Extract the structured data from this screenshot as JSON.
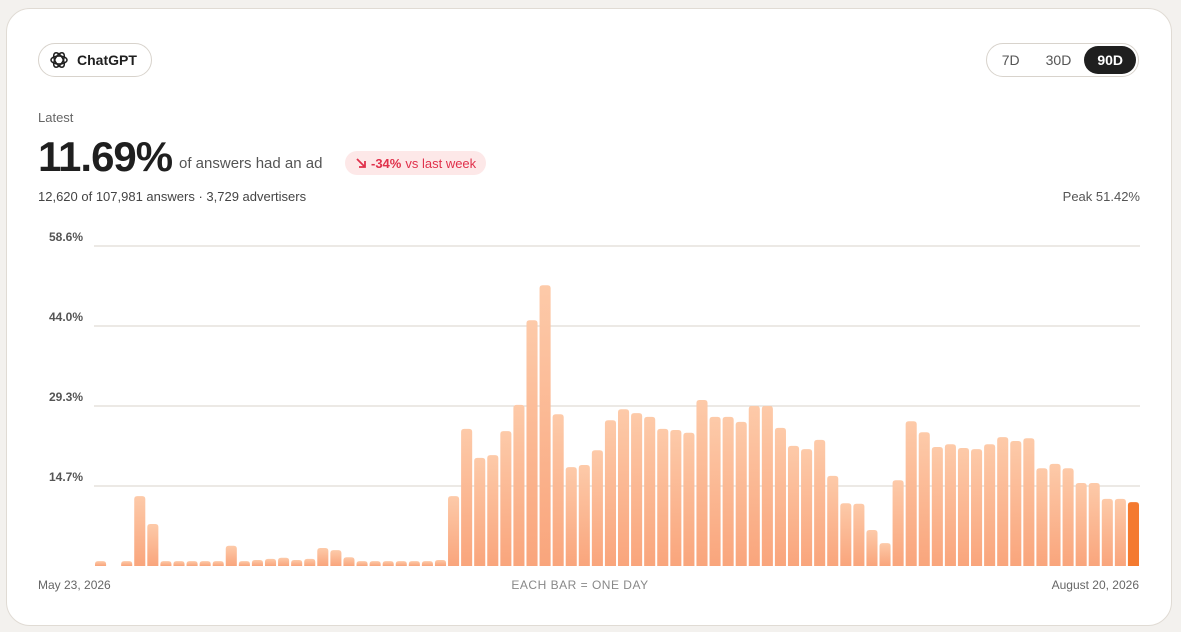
{
  "header": {
    "model": "ChatGPT",
    "ranges": [
      "7D",
      "30D",
      "90D"
    ],
    "active_range": "90D",
    "latest_label": "Latest",
    "latest_value": "11.69%",
    "latest_text": "of answers had an ad",
    "change": "-34%",
    "change_text": "vs last week",
    "summary": "12,620 of 107,981 answers · 3,729 advertisers",
    "peak": "Peak 51.42%"
  },
  "chart_data": {
    "type": "bar",
    "values": [
      0.9,
      0,
      0.9,
      12.8,
      7.7,
      0.9,
      0.9,
      0.9,
      0.9,
      0.9,
      3.7,
      0.9,
      1.1,
      1.3,
      1.5,
      1.1,
      1.3,
      3.3,
      2.9,
      1.6,
      0.9,
      0.9,
      0.9,
      0.9,
      0.9,
      0.9,
      1.1,
      12.8,
      25.1,
      19.8,
      20.3,
      24.7,
      29.5,
      45.0,
      51.42,
      27.8,
      18.1,
      18.5,
      21.2,
      26.7,
      28.7,
      28.0,
      27.3,
      25.1,
      24.9,
      24.4,
      30.4,
      27.3,
      27.3,
      26.4,
      29.3,
      29.3,
      25.3,
      22.0,
      21.4,
      23.1,
      16.5,
      11.5,
      11.4,
      6.6,
      4.2,
      15.7,
      26.5,
      24.5,
      21.8,
      22.3,
      21.6,
      21.4,
      22.3,
      23.6,
      22.9,
      23.4,
      17.9,
      18.7,
      17.9,
      15.2,
      15.2,
      12.3,
      12.3,
      11.69
    ],
    "color": "#fdcaa9",
    "highlight_color": "#f47a30",
    "ylim": [
      0,
      58.6
    ],
    "yticks": [
      {
        "value": 14.65,
        "label": "14.7%"
      },
      {
        "value": 29.3,
        "label": "29.3%"
      },
      {
        "value": 43.95,
        "label": "44.0%"
      },
      {
        "value": 58.6,
        "label": "58.6%"
      }
    ],
    "grid": true,
    "x_labels": [
      "May 23, 2026",
      "August 20, 2026"
    ],
    "x_note": "EACH BAR = ONE DAY"
  }
}
